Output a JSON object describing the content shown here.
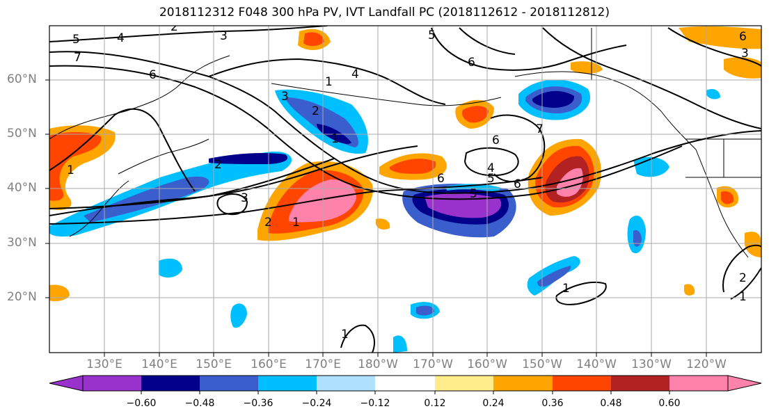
{
  "title": "2018112312 F048 300 hPa PV, IVT Landfall PC (2018112612 - 2018112812)",
  "lat_labels": [
    "60°N",
    "50°N",
    "40°N",
    "30°N",
    "20°N"
  ],
  "lon_labels": [
    "130°E",
    "140°E",
    "150°E",
    "160°E",
    "170°E",
    "180°W",
    "170°W",
    "160°W",
    "150°W",
    "140°W",
    "130°W",
    "120°W"
  ],
  "colorbar": {
    "ticks": [
      "−0.60",
      "−0.48",
      "−0.36",
      "−0.24",
      "−0.12",
      "0.12",
      "0.24",
      "0.36",
      "0.48",
      "0.60"
    ],
    "colors": [
      "#9932cc",
      "#00008b",
      "#3a5fcd",
      "#00bfff",
      "#b0e2ff",
      "#ffffff",
      "#ffec8b",
      "#ffa500",
      "#ff4500",
      "#b22222",
      "#ff82ab"
    ]
  },
  "contour_labels": [
    "1",
    "2",
    "3",
    "4",
    "5",
    "6",
    "7"
  ]
}
